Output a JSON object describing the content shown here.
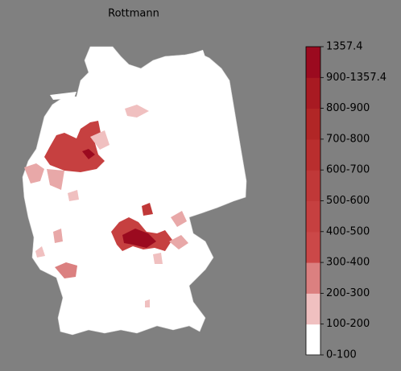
{
  "title": "Rottmann",
  "legend": {
    "labels": [
      "0-100",
      "100-200",
      "200-300",
      "300-400",
      "400-500",
      "500-600",
      "600-700",
      "700-800",
      "800-900",
      "900-1357.4",
      "1357.4"
    ],
    "colors": [
      "#ffffff",
      "#f0c0c0",
      "#db8080",
      "#cb4848",
      "#c64040",
      "#c03838",
      "#b92e2e",
      "#b12626",
      "#a81a22",
      "#9b0a1f"
    ]
  }
}
